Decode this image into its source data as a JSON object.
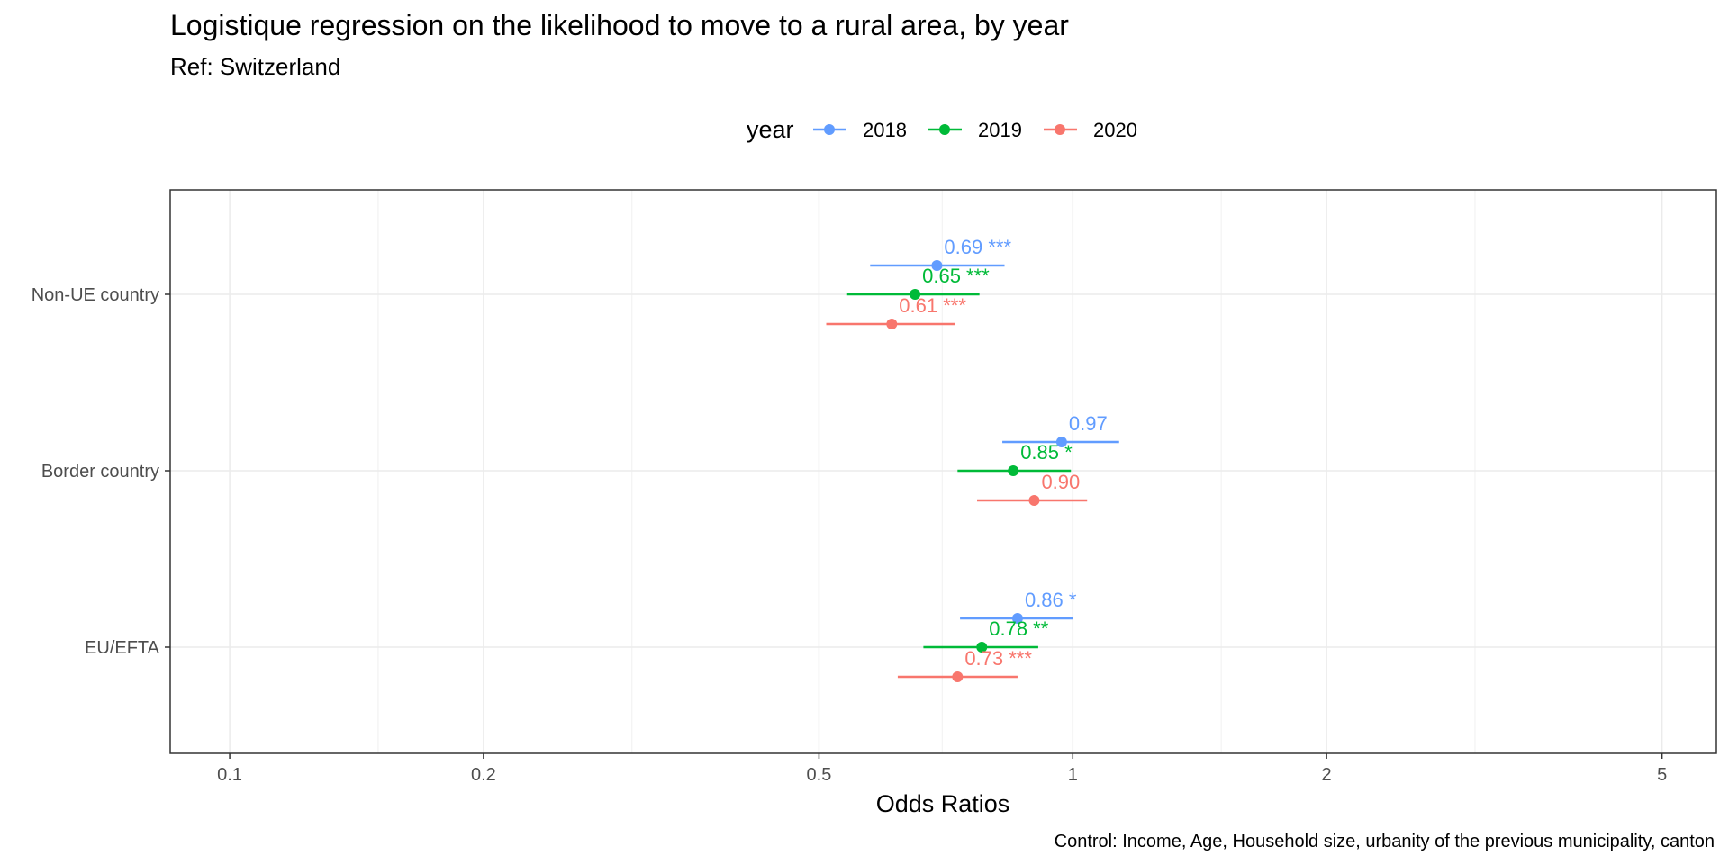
{
  "chart_data": {
    "type": "scatter",
    "title": "Logistique regression on the likelihood to move to a rural area, by year",
    "subtitle": "Ref: Switzerland",
    "xlabel": "Odds Ratios",
    "caption": "Control: Income, Age, Household size, urbanity of the previous municipality, canton",
    "x_scale": "log",
    "xlim": [
      0.085,
      5.8
    ],
    "x_ticks": [
      {
        "value": 0.1,
        "label": "0.1"
      },
      {
        "value": 0.2,
        "label": "0.2"
      },
      {
        "value": 0.5,
        "label": "0.5"
      },
      {
        "value": 1,
        "label": "1"
      },
      {
        "value": 2,
        "label": "2"
      },
      {
        "value": 5,
        "label": "5"
      }
    ],
    "x_minor_gridlines": [
      0.15,
      0.3,
      0.7,
      1.5,
      3
    ],
    "grid": true,
    "legend": {
      "title": "year",
      "position": "top"
    },
    "categories": [
      "Non-UE country",
      "Border country",
      "EU/EFTA"
    ],
    "series": [
      {
        "name": "2018",
        "color": "#619CFF",
        "points": [
          {
            "category": "Non-UE country",
            "estimate": 0.69,
            "low": 0.575,
            "high": 0.83,
            "label": "0.69 ***"
          },
          {
            "category": "Border country",
            "estimate": 0.97,
            "low": 0.825,
            "high": 1.135,
            "label": "0.97"
          },
          {
            "category": "EU/EFTA",
            "estimate": 0.86,
            "low": 0.735,
            "high": 1.0,
            "label": "0.86 *"
          }
        ]
      },
      {
        "name": "2019",
        "color": "#00BA38",
        "points": [
          {
            "category": "Non-UE country",
            "estimate": 0.65,
            "low": 0.54,
            "high": 0.775,
            "label": "0.65 ***"
          },
          {
            "category": "Border country",
            "estimate": 0.85,
            "low": 0.73,
            "high": 0.995,
            "label": "0.85 *"
          },
          {
            "category": "EU/EFTA",
            "estimate": 0.78,
            "low": 0.665,
            "high": 0.91,
            "label": "0.78 **"
          }
        ]
      },
      {
        "name": "2020",
        "color": "#F8766D",
        "points": [
          {
            "category": "Non-UE country",
            "estimate": 0.61,
            "low": 0.51,
            "high": 0.725,
            "label": "0.61 ***"
          },
          {
            "category": "Border country",
            "estimate": 0.9,
            "low": 0.77,
            "high": 1.04,
            "label": "0.90"
          },
          {
            "category": "EU/EFTA",
            "estimate": 0.73,
            "low": 0.62,
            "high": 0.86,
            "label": "0.73 ***"
          }
        ]
      }
    ]
  }
}
